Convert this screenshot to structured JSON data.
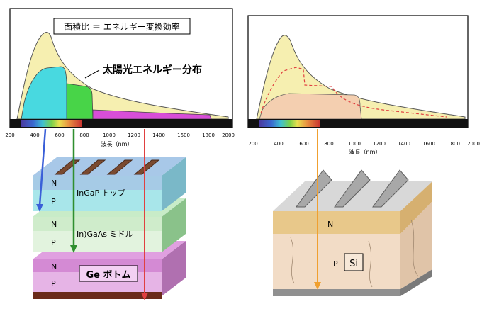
{
  "left_chart": {
    "ratio_label": "面積比 ＝ エネルギー変換効率",
    "spectrum_label": "太陽光エネルギー分布",
    "x_ticks": [
      "200",
      "400",
      "600",
      "800",
      "1000",
      "1200",
      "1400",
      "1600",
      "1800",
      "2000"
    ],
    "x_axis_label": "波長（nm）"
  },
  "right_chart": {
    "x_ticks": [
      "200",
      "400",
      "600",
      "800",
      "1000",
      "1200",
      "1400",
      "1600",
      "1800",
      "2000"
    ],
    "x_axis_label": "波長（nm）"
  },
  "multijunction_cell": {
    "top": {
      "label": "InGaP トップ",
      "n": "N",
      "p": "P"
    },
    "middle": {
      "label": "In)GaAs ミドル",
      "n": "N",
      "p": "P"
    },
    "bottom": {
      "label": "Ge ボトム",
      "n": "N",
      "p": "P"
    }
  },
  "silicon_cell": {
    "n": "N",
    "p": "P",
    "material": "Si"
  },
  "colors": {
    "sunlight_curve": "#f6efb0",
    "top_cell": "#48d9e0",
    "middle_cell": "#48d448",
    "bottom_cell": "#d84ed8",
    "si_absorbed": "#f4cfb0",
    "arrow_blue": "#3a5fd8",
    "arrow_green": "#2f8f2f",
    "arrow_red": "#e04040",
    "arrow_orange": "#f0a030"
  }
}
